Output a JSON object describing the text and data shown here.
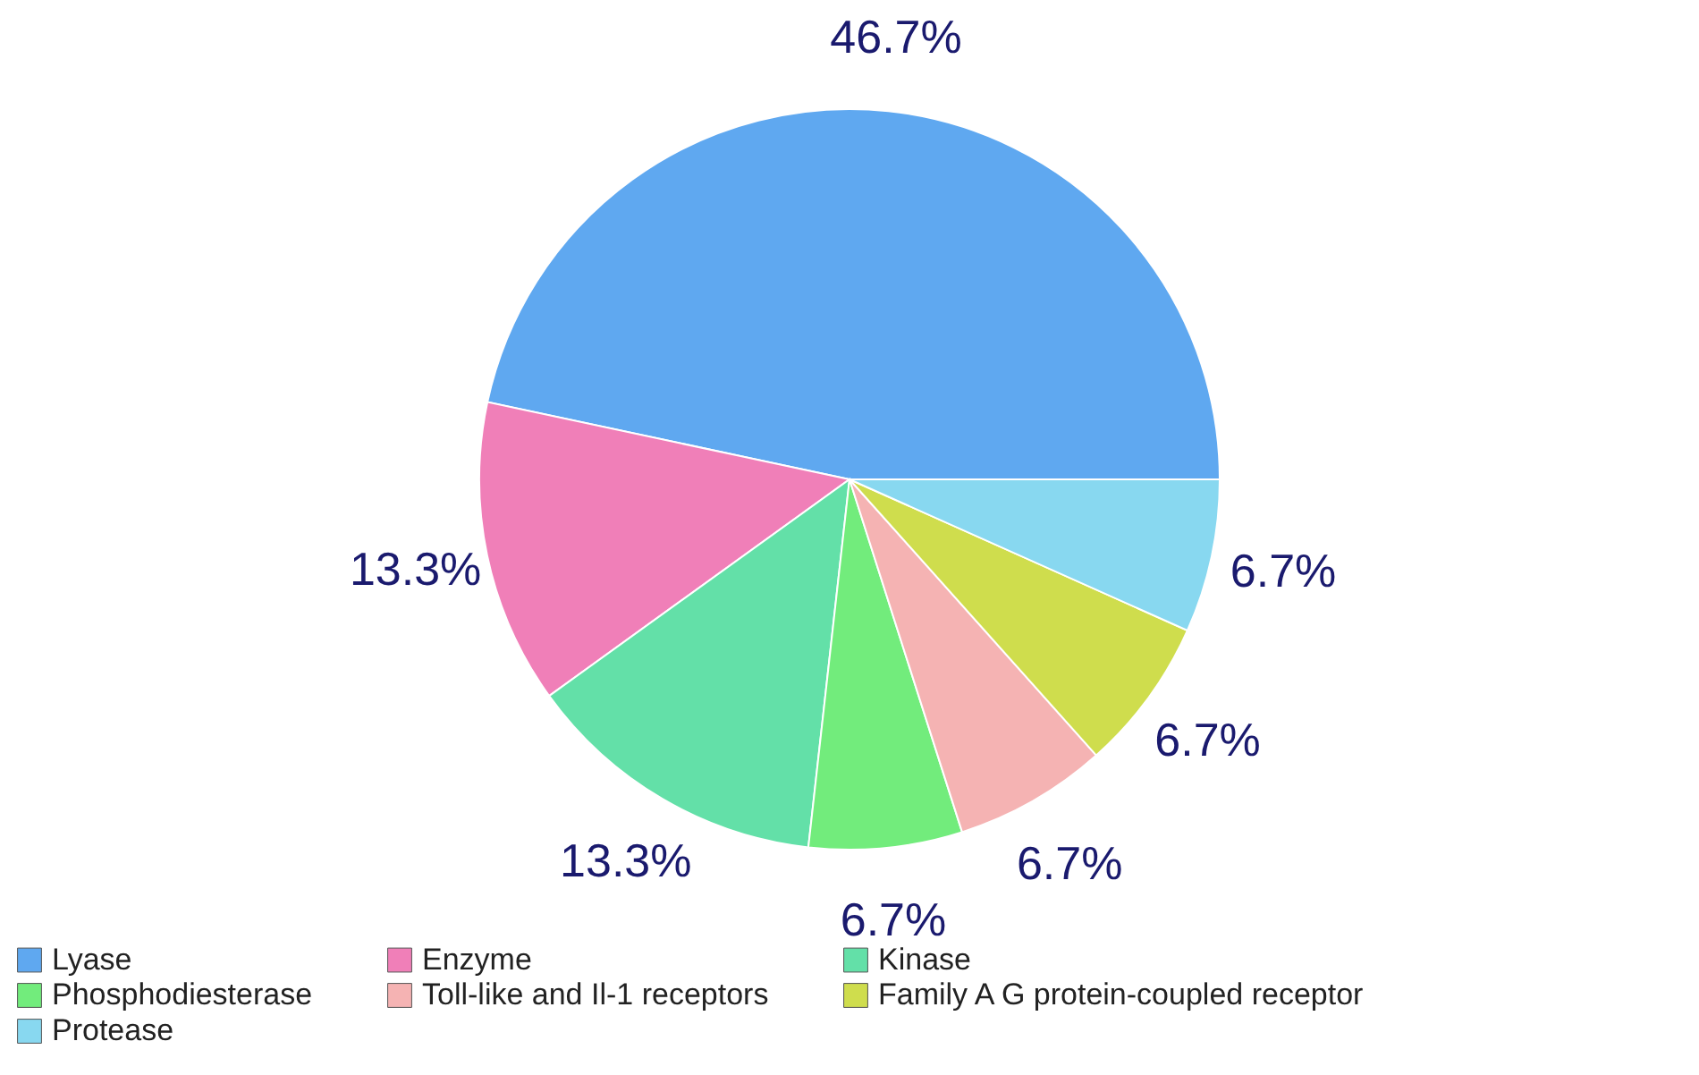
{
  "chart_data": {
    "type": "pie",
    "categories": [
      "Lyase",
      "Enzyme",
      "Kinase",
      "Phosphodiesterase",
      "Toll-like and Il-1 receptors",
      "Family A G protein-coupled receptor",
      "Protease"
    ],
    "values": [
      46.7,
      13.3,
      13.3,
      6.7,
      6.7,
      6.7,
      6.7
    ],
    "value_labels": [
      "46.7%",
      "13.3%",
      "13.3%",
      "6.7%",
      "6.7%",
      "6.7%",
      "6.7%"
    ],
    "colors": [
      "#5fa8f0",
      "#f07fb8",
      "#63e0a8",
      "#72ec7c",
      "#f5b3b3",
      "#cfdd4d",
      "#88d8f0"
    ],
    "legend": "bottom"
  }
}
